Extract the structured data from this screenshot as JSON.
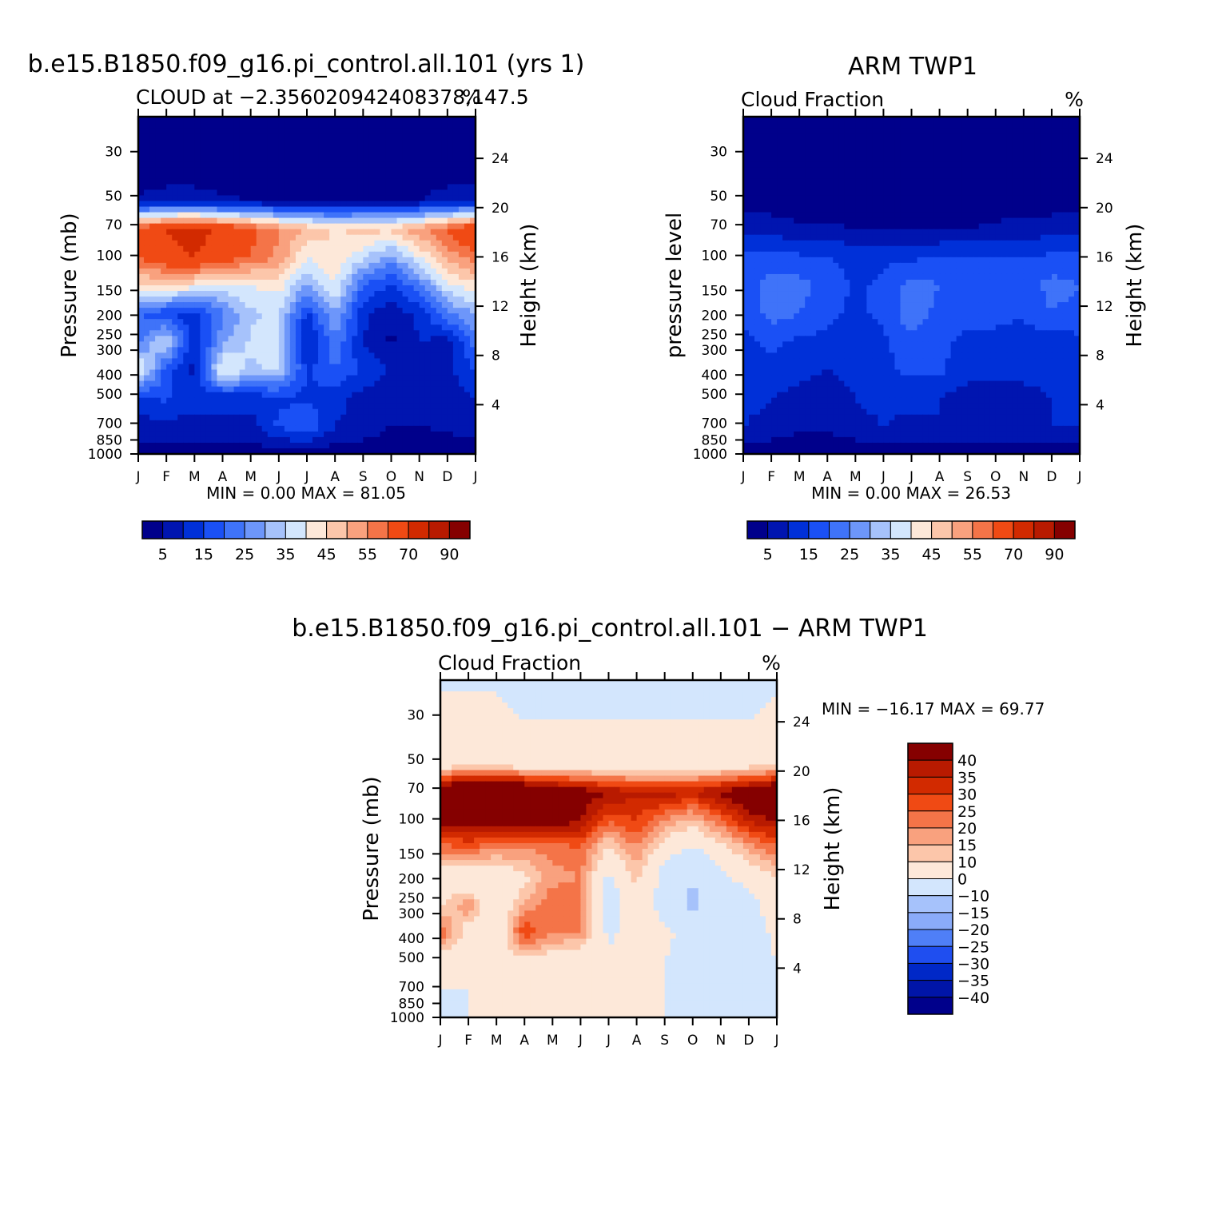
{
  "chart_data": [
    {
      "type": "heatmap",
      "title": "b.e15.B1850.f09_g16.pi_control.all.101 (yrs 1)",
      "subtitle_left": "CLOUD at −2.356020942408378,147.5",
      "units": "%",
      "xlabel": "",
      "ylabel": "Pressure (mb)",
      "ylabel_right": "Height (km)",
      "x_ticks": [
        "J",
        "F",
        "M",
        "A",
        "M",
        "J",
        "J",
        "A",
        "S",
        "O",
        "N",
        "D",
        "J"
      ],
      "y_ticks": [
        30,
        50,
        70,
        100,
        150,
        200,
        250,
        300,
        400,
        500,
        700,
        850,
        1000
      ],
      "y_right_ticks": [
        24,
        20,
        16,
        12,
        8,
        4
      ],
      "ylim": [
        1000,
        20
      ],
      "stats": {
        "min_label": "MIN =",
        "min": "0.00",
        "max_label": "MAX =",
        "max": "81.05"
      },
      "colorbar_labels": [
        "5",
        "15",
        "25",
        "35",
        "45",
        "55",
        "70",
        "90"
      ],
      "field": [
        [
          2,
          2,
          2,
          2,
          2,
          2,
          2,
          2,
          2,
          2,
          2,
          2,
          2
        ],
        [
          2,
          2,
          2,
          2,
          2,
          2,
          2,
          2,
          2,
          2,
          2,
          2,
          2
        ],
        [
          2,
          2,
          2,
          2,
          2,
          2,
          2,
          2,
          2,
          2,
          2,
          2,
          2
        ],
        [
          6,
          8,
          8,
          6,
          5,
          4,
          4,
          3,
          4,
          5,
          5,
          8,
          8
        ],
        [
          64,
          70,
          74,
          68,
          62,
          55,
          50,
          44,
          48,
          46,
          54,
          60,
          70
        ],
        [
          60,
          66,
          70,
          64,
          60,
          54,
          40,
          45,
          36,
          28,
          40,
          52,
          58
        ],
        [
          44,
          46,
          42,
          38,
          40,
          42,
          30,
          40,
          20,
          14,
          24,
          38,
          44
        ],
        [
          20,
          16,
          12,
          24,
          34,
          36,
          14,
          30,
          12,
          6,
          12,
          24,
          30
        ],
        [
          24,
          36,
          10,
          28,
          36,
          36,
          8,
          24,
          10,
          4,
          10,
          8,
          22
        ],
        [
          42,
          18,
          8,
          42,
          34,
          36,
          14,
          20,
          14,
          10,
          10,
          8,
          16
        ],
        [
          14,
          16,
          12,
          12,
          12,
          14,
          14,
          12,
          8,
          6,
          6,
          6,
          10
        ],
        [
          8,
          8,
          8,
          8,
          8,
          16,
          20,
          10,
          8,
          5,
          5,
          6,
          8
        ],
        [
          2,
          2,
          2,
          2,
          2,
          2,
          2,
          2,
          2,
          2,
          2,
          2,
          2
        ]
      ]
    },
    {
      "type": "heatmap",
      "title": "ARM TWP1",
      "subtitle_left": "Cloud Fraction",
      "units": "%",
      "xlabel": "",
      "ylabel": "pressure level",
      "ylabel_right": "Height (km)",
      "x_ticks": [
        "J",
        "F",
        "M",
        "A",
        "M",
        "J",
        "J",
        "A",
        "S",
        "O",
        "N",
        "D",
        "J"
      ],
      "y_ticks": [
        30,
        50,
        70,
        100,
        150,
        200,
        250,
        300,
        400,
        500,
        700,
        850,
        1000
      ],
      "y_right_ticks": [
        24,
        20,
        16,
        12,
        8,
        4
      ],
      "ylim": [
        1000,
        20
      ],
      "stats": {
        "min_label": "MIN =",
        "min": "0.00",
        "max_label": "MAX =",
        "max": "26.53"
      },
      "colorbar_labels": [
        "5",
        "15",
        "25",
        "35",
        "45",
        "55",
        "70",
        "90"
      ],
      "field": [
        [
          1,
          1,
          1,
          1,
          1,
          1,
          1,
          1,
          1,
          1,
          1,
          1,
          1
        ],
        [
          1,
          1,
          1,
          1,
          1,
          1,
          1,
          1,
          1,
          1,
          1,
          1,
          1
        ],
        [
          1,
          1,
          1,
          1,
          1,
          1,
          1,
          1,
          1,
          1,
          1,
          1,
          1
        ],
        [
          2,
          2,
          2,
          2,
          2,
          2,
          2,
          2,
          2,
          2,
          2,
          2,
          2
        ],
        [
          8,
          8,
          6,
          6,
          5,
          5,
          5,
          5,
          5,
          6,
          7,
          8,
          8
        ],
        [
          16,
          18,
          16,
          15,
          14,
          14,
          14,
          15,
          16,
          16,
          15,
          16,
          16
        ],
        [
          18,
          22,
          22,
          18,
          14,
          16,
          22,
          20,
          16,
          16,
          17,
          22,
          20
        ],
        [
          16,
          22,
          20,
          16,
          14,
          16,
          24,
          18,
          16,
          16,
          16,
          20,
          18
        ],
        [
          14,
          16,
          14,
          14,
          12,
          14,
          18,
          16,
          14,
          14,
          12,
          12,
          14
        ],
        [
          14,
          14,
          12,
          10,
          12,
          14,
          16,
          16,
          12,
          12,
          12,
          12,
          14
        ],
        [
          12,
          10,
          8,
          6,
          10,
          12,
          12,
          10,
          8,
          6,
          8,
          10,
          10
        ],
        [
          10,
          8,
          6,
          6,
          8,
          10,
          8,
          10,
          8,
          8,
          8,
          10,
          10
        ],
        [
          2,
          2,
          2,
          2,
          2,
          2,
          2,
          2,
          2,
          2,
          2,
          2,
          2
        ]
      ]
    },
    {
      "type": "heatmap",
      "title": "b.e15.B1850.f09_g16.pi_control.all.101 − ARM TWP1",
      "subtitle_left": "Cloud Fraction",
      "units": "%",
      "xlabel": "",
      "ylabel": "Pressure (mb)",
      "ylabel_right": "Height (km)",
      "x_ticks": [
        "J",
        "F",
        "M",
        "A",
        "M",
        "J",
        "J",
        "A",
        "S",
        "O",
        "N",
        "D",
        "J"
      ],
      "y_ticks": [
        30,
        50,
        70,
        100,
        150,
        200,
        250,
        300,
        400,
        500,
        700,
        850,
        1000
      ],
      "y_right_ticks": [
        24,
        20,
        16,
        12,
        8,
        4
      ],
      "ylim": [
        1000,
        20
      ],
      "stats": {
        "min_label": "MIN =",
        "min": "−16.17",
        "max_label": "MAX =",
        "max": "69.77"
      },
      "colorbar_labels": [
        "40",
        "35",
        "30",
        "25",
        "20",
        "15",
        "10",
        "0",
        "−10",
        "−15",
        "−20",
        "−25",
        "−30",
        "−35",
        "−40"
      ],
      "field": [
        [
          -2,
          -2,
          -2,
          -2,
          -2,
          -2,
          -2,
          -2,
          -2,
          -2,
          -2,
          -2,
          -2
        ],
        [
          2,
          2,
          2,
          -2,
          -2,
          -2,
          -2,
          -2,
          -2,
          -2,
          -2,
          -2,
          2
        ],
        [
          3,
          3,
          3,
          2,
          2,
          2,
          2,
          2,
          2,
          2,
          2,
          2,
          3
        ],
        [
          4,
          6,
          6,
          4,
          3,
          3,
          3,
          2,
          2,
          3,
          3,
          6,
          6
        ],
        [
          52,
          58,
          60,
          56,
          50,
          45,
          40,
          36,
          38,
          36,
          42,
          48,
          56
        ],
        [
          42,
          46,
          48,
          46,
          44,
          40,
          26,
          30,
          20,
          12,
          24,
          36,
          40
        ],
        [
          22,
          24,
          20,
          20,
          22,
          24,
          8,
          20,
          4,
          -2,
          6,
          16,
          24
        ],
        [
          4,
          0,
          2,
          8,
          18,
          20,
          -2,
          12,
          -4,
          -10,
          -2,
          4,
          10
        ],
        [
          8,
          20,
          0,
          16,
          24,
          22,
          -6,
          6,
          -4,
          -12,
          -4,
          -6,
          8
        ],
        [
          26,
          4,
          0,
          30,
          20,
          20,
          -2,
          4,
          2,
          -4,
          -4,
          -6,
          2
        ],
        [
          2,
          6,
          6,
          6,
          4,
          2,
          2,
          2,
          0,
          -2,
          -2,
          -4,
          0
        ],
        [
          0,
          0,
          2,
          2,
          0,
          4,
          8,
          0,
          0,
          -2,
          -2,
          -4,
          0
        ],
        [
          -2,
          0,
          0,
          0,
          0,
          0,
          0,
          0,
          0,
          0,
          0,
          0,
          -2
        ]
      ]
    }
  ],
  "palettes": {
    "cloud": [
      "#00008b",
      "#0015b0",
      "#0030d8",
      "#1a50f5",
      "#3f73f9",
      "#6d96fa",
      "#a6c2fb",
      "#d3e6fd",
      "#fde8d9",
      "#fcc6aa",
      "#f9a17e",
      "#f47448",
      "#f04a14",
      "#d22a00",
      "#b81a00",
      "#850000"
    ],
    "diff": [
      "#850000",
      "#b81a00",
      "#d22a00",
      "#f04a14",
      "#f47448",
      "#f9a17e",
      "#fcc6aa",
      "#fde8d9",
      "#d3e6fd",
      "#a6c2fb",
      "#8aabf9",
      "#4f7ff7",
      "#1f4ef0",
      "#0028c7",
      "#0015a8",
      "#00008b"
    ]
  }
}
